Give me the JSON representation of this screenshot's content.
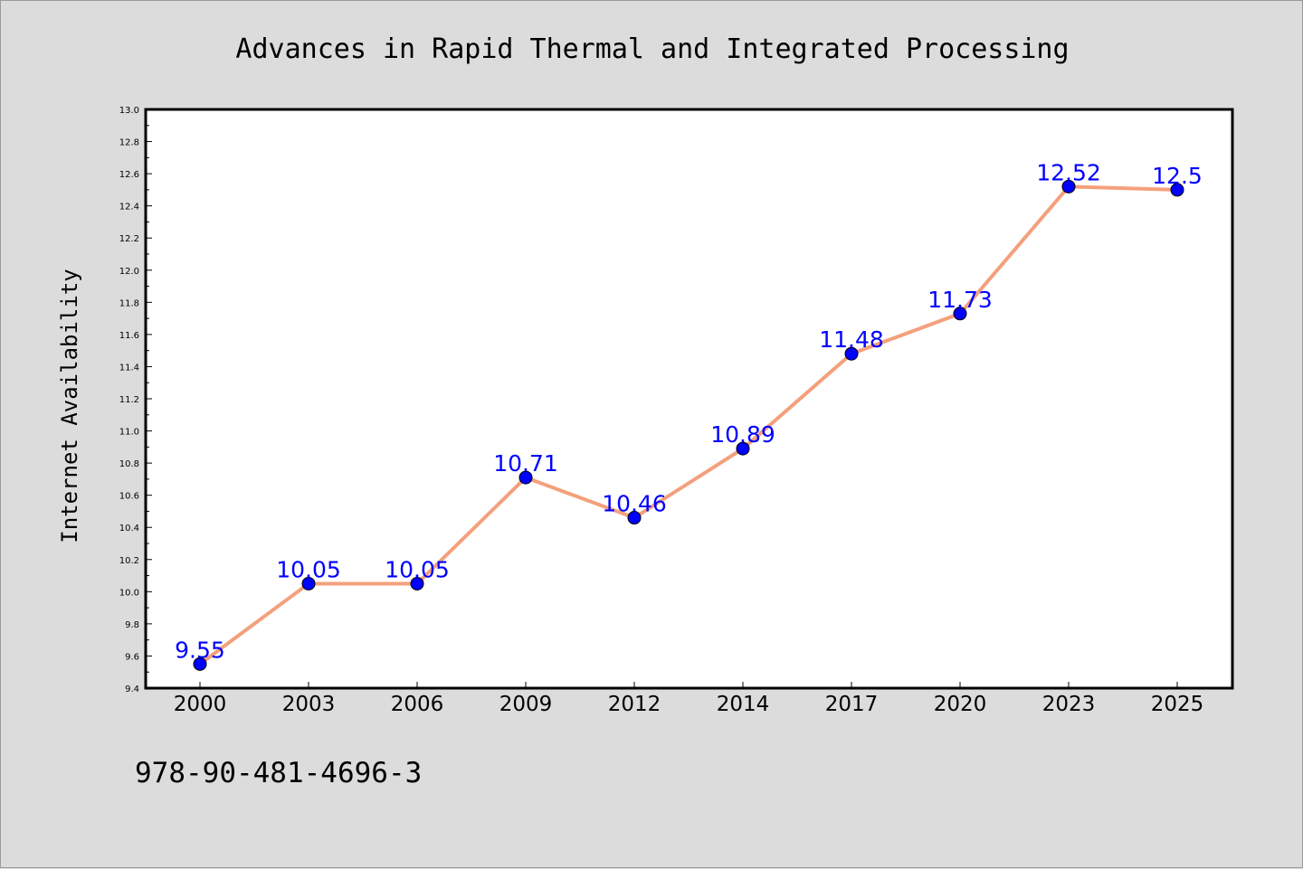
{
  "page": {
    "background": "#dcdcdc",
    "footer_text": "978-90-481-4696-3"
  },
  "chart_data": {
    "type": "line",
    "title": "Advances in Rapid Thermal and Integrated Processing",
    "xlabel": "",
    "ylabel": "Internet Availability",
    "categories": [
      "2000",
      "2003",
      "2006",
      "2009",
      "2012",
      "2014",
      "2017",
      "2020",
      "2023",
      "2025"
    ],
    "series": [
      {
        "values": [
          9.55,
          10.05,
          10.05,
          10.71,
          10.46,
          10.89,
          11.48,
          11.73,
          12.52,
          12.5
        ],
        "data_labels": [
          "9.55",
          "10.05",
          "10.05",
          "10.71",
          "10.46",
          "10.89",
          "11.48",
          "11.73",
          "12.52",
          "12.5"
        ],
        "line_color": "#f4a07c",
        "marker_color": "#0000ff"
      }
    ],
    "ylim": [
      9.4,
      13.0
    ],
    "yticks": [
      "9.4",
      "9.6",
      "9.8",
      "10.0",
      "10.2",
      "10.4",
      "10.6",
      "10.8",
      "11.0",
      "11.2",
      "11.4",
      "11.6",
      "11.8",
      "12.0",
      "12.2",
      "12.4",
      "12.6",
      "12.8",
      "13.0"
    ],
    "grid": false,
    "legend": "none"
  }
}
